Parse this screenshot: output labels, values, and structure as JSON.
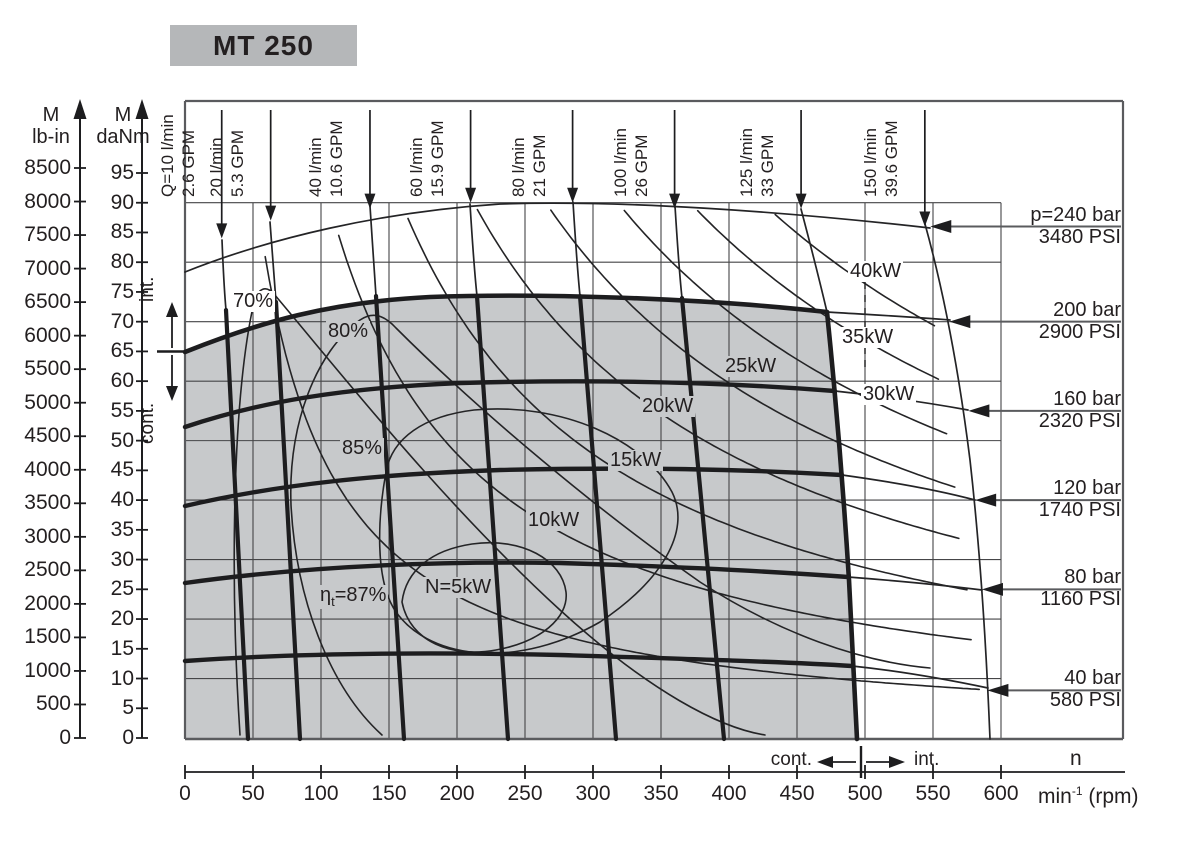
{
  "title": "MT 250",
  "labels": {
    "torque_secondary": {
      "line1": "M",
      "line2": "lb-in"
    },
    "torque_primary": {
      "line1": "M",
      "line2": "daNm"
    },
    "speed_name": "n",
    "speed_unit_prefix": "min",
    "speed_unit_sup": "-1",
    "speed_unit_suffix": " (rpm)",
    "left_int": "int.",
    "left_cont": "cont.",
    "bottom_cont": "cont.",
    "bottom_int": "int."
  },
  "chart_data": {
    "type": "performance-map",
    "title": "MT 250",
    "x_axis": {
      "label": "n",
      "unit": "min⁻¹ (rpm)",
      "min": 0,
      "max": 600,
      "tick_step": 50,
      "ticks": [
        0,
        50,
        100,
        150,
        200,
        250,
        300,
        350,
        400,
        450,
        500,
        550,
        600
      ]
    },
    "y_axis_daNm": {
      "label": "M",
      "unit": "daNm",
      "min": 0,
      "max": 95,
      "tick_step": 5,
      "ticks": [
        0,
        5,
        10,
        15,
        20,
        25,
        30,
        35,
        40,
        45,
        50,
        55,
        60,
        65,
        70,
        75,
        80,
        85,
        90,
        95
      ]
    },
    "y_axis_lb_in": {
      "label": "M",
      "unit": "lb-in",
      "min": 0,
      "max": 8500,
      "tick_step": 500,
      "ticks": [
        0,
        500,
        1000,
        1500,
        2000,
        2500,
        3000,
        3500,
        4000,
        4500,
        5000,
        5500,
        6000,
        6500,
        7000,
        7500,
        8000,
        8500
      ]
    },
    "grid": {
      "x_step_rpm": 50,
      "y_step_daNm": 10
    },
    "flow_curves": [
      {
        "l_min": 10,
        "label": "Q=10 l/min",
        "gpm_label": "2.6 GPM",
        "start": {
          "rpm": 27,
          "daNm": 84
        }
      },
      {
        "l_min": 20,
        "label": "20 l/min",
        "gpm_label": "5.3 GPM",
        "start": {
          "rpm": 63,
          "daNm": 87
        }
      },
      {
        "l_min": 40,
        "label": "40 l/min",
        "gpm_label": "10.6 GPM",
        "start": {
          "rpm": 136,
          "daNm": 89
        }
      },
      {
        "l_min": 60,
        "label": "60 l/min",
        "gpm_label": "15.9 GPM",
        "start": {
          "rpm": 210,
          "daNm": 90
        }
      },
      {
        "l_min": 80,
        "label": "80 l/min",
        "gpm_label": "21 GPM",
        "start": {
          "rpm": 285,
          "daNm": 90
        }
      },
      {
        "l_min": 100,
        "label": "100 l/min",
        "gpm_label": "26 GPM",
        "start": {
          "rpm": 360,
          "daNm": 89
        }
      },
      {
        "l_min": 125,
        "label": "125 l/min",
        "gpm_label": "33 GPM",
        "start": {
          "rpm": 453,
          "daNm": 89
        }
      },
      {
        "l_min": 150,
        "label": "150 l/min",
        "gpm_label": "39.6 GPM",
        "start": {
          "rpm": 544,
          "daNm": 86
        }
      }
    ],
    "pressure_curves": [
      {
        "bar": 240,
        "label": "p=240 bar",
        "psi_label": "3480 PSI",
        "torque_at_zero_speed_daNm": 78,
        "arrow_at": {
          "rpm": 548,
          "daNm": 86
        }
      },
      {
        "bar": 200,
        "label": "200 bar",
        "psi_label": "2900 PSI",
        "torque_at_zero_speed_daNm": 65,
        "arrow_at": {
          "rpm": 562,
          "daNm": 70
        }
      },
      {
        "bar": 160,
        "label": "160 bar",
        "psi_label": "2320 PSI",
        "torque_at_zero_speed_daNm": 52,
        "arrow_at": {
          "rpm": 576,
          "daNm": 55
        }
      },
      {
        "bar": 120,
        "label": "120 bar",
        "psi_label": "1740 PSI",
        "torque_at_zero_speed_daNm": 39,
        "arrow_at": {
          "rpm": 581,
          "daNm": 40
        }
      },
      {
        "bar": 80,
        "label": "80 bar",
        "psi_label": "1160 PSI",
        "torque_at_zero_speed_daNm": 26,
        "arrow_at": {
          "rpm": 586,
          "daNm": 25
        }
      },
      {
        "bar": 40,
        "label": "40 bar",
        "psi_label": "580 PSI",
        "torque_at_zero_speed_daNm": 13,
        "arrow_at": {
          "rpm": 590,
          "daNm": 8
        }
      }
    ],
    "power_curves": [
      {
        "kw": 5,
        "label": "N=5kW"
      },
      {
        "kw": 10,
        "label": "10kW"
      },
      {
        "kw": 15,
        "label": "15kW"
      },
      {
        "kw": 20,
        "label": "20kW"
      },
      {
        "kw": 25,
        "label": "25kW"
      },
      {
        "kw": 30,
        "label": "30kW"
      },
      {
        "kw": 35,
        "label": "35kW"
      },
      {
        "kw": 40,
        "label": "40kW"
      }
    ],
    "efficiency_contours": [
      {
        "label": "70%",
        "value": 70
      },
      {
        "label": "80%",
        "value": 80
      },
      {
        "label": "85%",
        "value": 85
      },
      {
        "label": "ηt=87%",
        "value": 87,
        "prefix": "η",
        "sub": "t",
        "suffix": "=87%"
      }
    ],
    "continuous_zone": {
      "max_pressure_bar": 200,
      "max_flow_l_min": 125,
      "torque_limit_daNm": 65,
      "speed_limit_rpm": 500
    },
    "colors": {
      "line": "#1d1d1f",
      "frame": "#5a5b5e",
      "zone_fill": "#c7c9cb",
      "title_bg": "#b5b7b9",
      "text": "#231f20"
    }
  }
}
